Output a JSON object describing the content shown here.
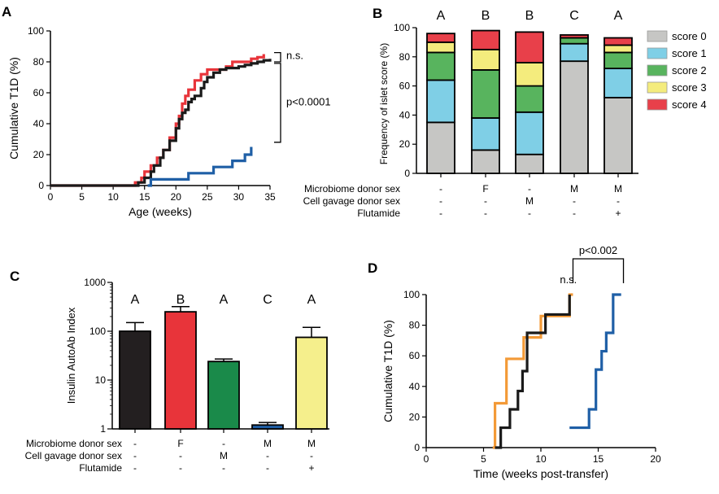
{
  "chart_data": [
    {
      "panel": "A",
      "type": "line",
      "xlabel": "Age (weeks)",
      "ylabel": "Cumulative T1D (%)",
      "xlim": [
        0,
        35
      ],
      "ylim": [
        0,
        100
      ],
      "xticks": [
        0,
        5,
        10,
        15,
        20,
        25,
        30,
        35
      ],
      "yticks": [
        0,
        20,
        40,
        60,
        80,
        100
      ],
      "series": [
        {
          "color": "#e8343a",
          "step": true,
          "x": [
            0,
            13.5,
            14.5,
            15,
            16,
            17,
            18,
            19,
            20,
            20.5,
            21,
            21.5,
            22,
            23,
            24,
            25,
            28,
            29,
            32,
            33,
            34
          ],
          "y": [
            0,
            2,
            5,
            9,
            13,
            18,
            23,
            31,
            40,
            45,
            53,
            58,
            62,
            68,
            72,
            75,
            77,
            80,
            82,
            83,
            85
          ]
        },
        {
          "color": "#1a1a1a",
          "step": true,
          "x": [
            0,
            14,
            15,
            16,
            16.5,
            17.5,
            18,
            19,
            20,
            20.5,
            21,
            21.5,
            22,
            22.5,
            23,
            24,
            24.5,
            25,
            26,
            27,
            28,
            30,
            31,
            32,
            33,
            34,
            35
          ],
          "y": [
            0,
            2,
            5,
            9,
            13,
            18,
            23,
            29,
            37,
            43,
            47,
            49,
            54,
            56,
            58,
            63,
            67,
            70,
            73,
            75,
            76,
            77,
            78,
            79,
            80,
            81,
            82
          ]
        },
        {
          "color": "#1f5fa6",
          "step": true,
          "x": [
            15.5,
            16,
            22,
            26,
            29,
            31,
            32
          ],
          "y": [
            0,
            4,
            8,
            12,
            16,
            20,
            25
          ]
        }
      ],
      "annotations": [
        "n.s.",
        "p<0.0001"
      ]
    },
    {
      "panel": "B",
      "type": "bar",
      "ylabel": "Frequency of islet score (%)",
      "ylim": [
        0,
        100
      ],
      "yticks": [
        0,
        20,
        40,
        60,
        80,
        100
      ],
      "group_letters": [
        "A",
        "B",
        "B",
        "C",
        "A"
      ],
      "row_labels": [
        "Microbiome donor sex",
        "Cell gavage donor sex",
        "Flutamide"
      ],
      "rows": [
        [
          "-",
          "F",
          "-",
          "M",
          "M"
        ],
        [
          "-",
          "-",
          "M",
          "-",
          "-"
        ],
        [
          "-",
          "-",
          "-",
          "-",
          "+"
        ]
      ],
      "series": [
        {
          "name": "score 0",
          "color": "#c6c6c4",
          "values": [
            35,
            16,
            13,
            77,
            52
          ]
        },
        {
          "name": "score 1",
          "color": "#7fcfe6",
          "values": [
            29,
            22,
            29,
            12,
            20
          ]
        },
        {
          "name": "score 2",
          "color": "#58b45e",
          "values": [
            19,
            33,
            18,
            4,
            11
          ]
        },
        {
          "name": "score 3",
          "color": "#f4ec7d",
          "values": [
            7,
            14,
            16,
            0,
            5
          ]
        },
        {
          "name": "score 4",
          "color": "#e8404a",
          "values": [
            6,
            13,
            21,
            2,
            5
          ]
        }
      ]
    },
    {
      "panel": "C",
      "type": "bar",
      "ylabel": "Insulin AutoAb Index",
      "yscale": "log",
      "ylim": [
        1,
        1000
      ],
      "yticks": [
        "1",
        "10",
        "100",
        "1000"
      ],
      "group_letters": [
        "A",
        "B",
        "A",
        "C",
        "A"
      ],
      "row_labels": [
        "Microbiome donor sex",
        "Cell gavage donor sex",
        "Flutamide"
      ],
      "rows": [
        [
          "-",
          "F",
          "-",
          "M",
          "M"
        ],
        [
          "-",
          "-",
          "M",
          "-",
          "-"
        ],
        [
          "-",
          "-",
          "-",
          "-",
          "+"
        ]
      ],
      "values": [
        100,
        250,
        24,
        1.2,
        75
      ],
      "errors": [
        150,
        320,
        27,
        1.35,
        120
      ],
      "colors": [
        "#231f20",
        "#e8343a",
        "#1a8a4a",
        "#1f5fa6",
        "#f5ef8c"
      ]
    },
    {
      "panel": "D",
      "type": "line",
      "xlabel": "Time (weeks post-transfer)",
      "ylabel": "Cumulative T1D (%)",
      "xlim": [
        0,
        20
      ],
      "ylim": [
        0,
        100
      ],
      "xticks": [
        0,
        5,
        10,
        15,
        20
      ],
      "yticks": [
        0,
        20,
        40,
        60,
        80,
        100
      ],
      "series": [
        {
          "color": "#f39a37",
          "step": true,
          "x": [
            5.8,
            6,
            7,
            8.5,
            10,
            12.5,
            12.8
          ],
          "y": [
            0,
            29,
            58,
            72,
            86,
            100,
            100
          ]
        },
        {
          "color": "#1a1a1a",
          "step": true,
          "x": [
            6,
            6.5,
            7.3,
            8,
            8.4,
            8.8,
            9.5,
            10.4,
            11,
            12.5
          ],
          "y": [
            0,
            13,
            25,
            37,
            50,
            75,
            75,
            87,
            87,
            100
          ]
        },
        {
          "color": "#1f5fa6",
          "step": true,
          "x": [
            12.5,
            14.2,
            14.8,
            15.3,
            15.7,
            16.3,
            17
          ],
          "y": [
            13,
            25,
            51,
            63,
            75,
            100,
            100
          ]
        }
      ],
      "annotations": [
        "n.s.",
        "p<0.002"
      ]
    }
  ]
}
